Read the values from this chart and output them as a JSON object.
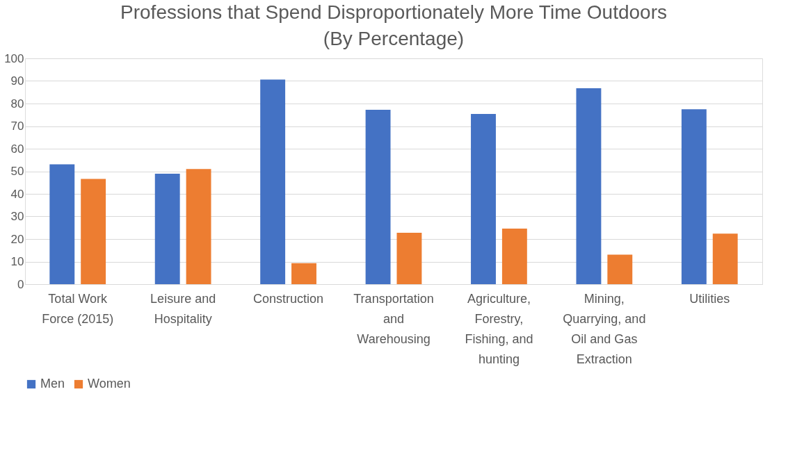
{
  "chart_data": {
    "type": "bar",
    "title": "Professions that Spend Disproportionately More Time Outdoors (By Percentage)",
    "categories": [
      "Total Work Force (2015)",
      "Leisure and Hospitality",
      "Construction",
      "Transportation and Warehousing",
      "Agriculture, Forestry, Fishing, and hunting",
      "Mining, Quarrying, and Oil and Gas Extraction",
      "Utilities"
    ],
    "series": [
      {
        "name": "Men",
        "color": "#4472c4",
        "values": [
          53.1,
          48.9,
          90.6,
          77.2,
          75.4,
          86.8,
          77.5
        ]
      },
      {
        "name": "Women",
        "color": "#ed7d31",
        "values": [
          46.6,
          51.0,
          9.3,
          22.8,
          24.6,
          13.1,
          22.4
        ]
      }
    ],
    "ylim": [
      0,
      100
    ],
    "yticks": [
      0,
      10,
      20,
      30,
      40,
      50,
      60,
      70,
      80,
      90,
      100
    ],
    "grid": "y",
    "legend": "bottom"
  }
}
